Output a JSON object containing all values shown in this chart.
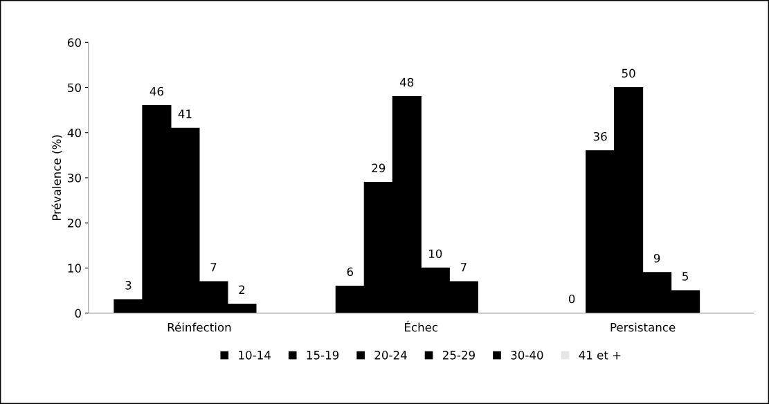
{
  "chart_data": {
    "type": "bar",
    "ylabel": "Prévalence (%)",
    "categories": [
      "Réinfection",
      "Échec",
      "Persistance"
    ],
    "series": [
      {
        "name": "10-14",
        "color": "#000000",
        "values": [
          3,
          6,
          0
        ]
      },
      {
        "name": "15-19",
        "color": "#000000",
        "values": [
          46,
          29,
          36
        ]
      },
      {
        "name": "20-24",
        "color": "#000000",
        "values": [
          41,
          48,
          50
        ]
      },
      {
        "name": "25-29",
        "color": "#000000",
        "values": [
          7,
          10,
          9
        ]
      },
      {
        "name": "30-40",
        "color": "#000000",
        "values": [
          2,
          7,
          5
        ]
      },
      {
        "name": "41 et +",
        "color": "#e6e6e6",
        "values": [
          null,
          null,
          null
        ]
      }
    ],
    "ylim": [
      0,
      60
    ],
    "yticks": [
      0,
      10,
      20,
      30,
      40,
      50,
      60
    ],
    "data_labels": true,
    "grid": false,
    "legend": "bottom"
  }
}
